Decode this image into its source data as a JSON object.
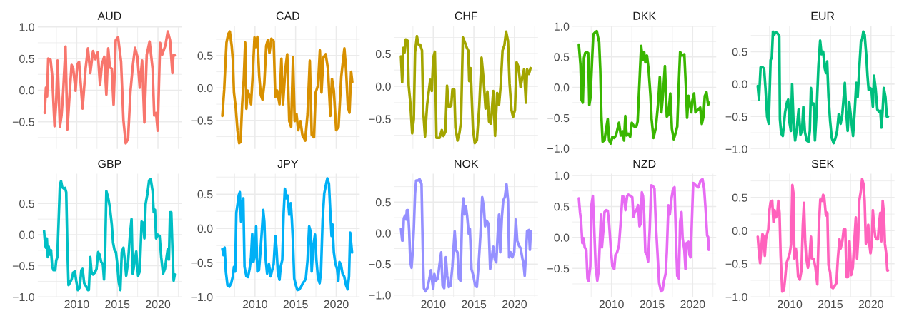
{
  "chart_data": [
    {
      "type": "line",
      "title": "AUD",
      "color": "#f8766d",
      "grid": true,
      "tick_labels": "y",
      "xlim": [
        2005.2,
        2022.9
      ],
      "xticks": [
        {
          "value": 2007.5,
          "label": null
        },
        2010,
        {
          "value": 2012.5,
          "label": null
        },
        2015,
        {
          "value": 2017.5,
          "label": null
        },
        2020,
        {
          "value": 2022.5,
          "label": null
        }
      ],
      "ylim": [
        -0.93,
        1.02
      ],
      "yticks": [
        {
          "value": -0.75,
          "label": null
        },
        {
          "value": -0.5,
          "label": "−0.5"
        },
        {
          "value": -0.25,
          "label": null
        },
        {
          "value": 0,
          "label": "0.0"
        },
        {
          "value": 0.25,
          "label": null
        },
        {
          "value": 0.5,
          "label": "0.5"
        },
        {
          "value": 0.75,
          "label": null
        },
        {
          "value": 1.0,
          "label": "1.0"
        }
      ],
      "x": [
        2006.06,
        2006.21,
        2006.35,
        2006.49,
        2006.78,
        2006.98,
        2007.27,
        2007.47,
        2007.64,
        2007.93,
        2008.13,
        2008.33,
        2008.62,
        2008.85,
        2009.14,
        2009.37,
        2009.57,
        2009.86,
        2010.06,
        2010.29,
        2010.72,
        2011.09,
        2011.38,
        2011.67,
        2012.01,
        2012.3,
        2012.59,
        2012.87,
        2013.1,
        2013.39,
        2013.65,
        2013.88,
        2014.08,
        2014.31,
        2014.54,
        2014.8,
        2015.09,
        2015.46,
        2015.75,
        2016.03,
        2016.32,
        2016.61,
        2016.9,
        2017.18,
        2017.47,
        2017.76,
        2018.05,
        2018.33,
        2018.62,
        2018.97,
        2019.34,
        2019.54,
        2019.77,
        2019.97,
        2020.26,
        2020.52,
        2020.92,
        2021.21,
        2021.49,
        2021.78,
        2021.9,
        2022.07
      ],
      "values": [
        -0.36,
        0.04,
        -0.1,
        0.5,
        0.48,
        0.23,
        -0.57,
        -0.2,
        0.47,
        -0.58,
        -0.4,
        -0.03,
        0.69,
        -0.62,
        -0.03,
        0.4,
        0.34,
        -0.01,
        0.4,
        0.45,
        -0.29,
        0.34,
        0.66,
        0.27,
        0.62,
        0.49,
        0.6,
        0.08,
        0.41,
        0.53,
        -0.07,
        0.66,
        0.36,
        0.34,
        -0.23,
        0.79,
        0.84,
        0.45,
        -0.47,
        -0.84,
        -0.77,
        -0.03,
        0.38,
        0.67,
        0.53,
        0.04,
        0.47,
        -0.51,
        0.56,
        0.77,
        0.34,
        -0.4,
        -0.36,
        -0.64,
        0.75,
        0.56,
        0.71,
        0.93,
        0.79,
        0.27,
        0.55,
        0.55
      ]
    },
    {
      "type": "line",
      "title": "CAD",
      "color": "#d89000",
      "grid": true,
      "tick_labels": "y",
      "xlim": [
        2005.2,
        2022.9
      ],
      "xticks": [
        {
          "value": 2007.5,
          "label": null
        },
        2010,
        {
          "value": 2012.5,
          "label": null
        },
        2015,
        {
          "value": 2017.5,
          "label": null
        },
        2020,
        {
          "value": 2022.5,
          "label": null
        }
      ],
      "ylim": [
        -0.94,
        0.96
      ],
      "yticks": [
        {
          "value": -0.75,
          "label": null
        },
        {
          "value": -0.5,
          "label": "−0.5"
        },
        {
          "value": -0.25,
          "label": null
        },
        {
          "value": 0,
          "label": "0.0"
        },
        {
          "value": 0.25,
          "label": null
        },
        {
          "value": 0.5,
          "label": "0.5"
        },
        {
          "value": 0.75,
          "label": null
        }
      ],
      "x": [
        2005.98,
        2006.21,
        2006.35,
        2006.49,
        2006.7,
        2006.9,
        2007.13,
        2007.27,
        2007.41,
        2007.64,
        2007.84,
        2008.05,
        2008.22,
        2008.42,
        2008.62,
        2008.79,
        2008.94,
        2009.08,
        2009.28,
        2009.51,
        2009.71,
        2009.94,
        2010.09,
        2010.29,
        2010.52,
        2010.72,
        2010.92,
        2011.15,
        2011.38,
        2011.58,
        2011.78,
        2012.01,
        2012.3,
        2012.5,
        2012.73,
        2013.02,
        2013.25,
        2013.45,
        2013.74,
        2013.97,
        2014.22,
        2014.45,
        2014.68,
        2014.89,
        2015.11,
        2015.32,
        2015.6,
        2015.83,
        2016.18,
        2016.47,
        2016.75,
        2016.98,
        2017.27,
        2017.47,
        2017.76,
        2017.99,
        2018.19,
        2018.42,
        2018.71,
        2018.99,
        2019.28,
        2019.48,
        2019.71,
        2020.0,
        2020.29,
        2020.63,
        2021.01,
        2021.21,
        2021.44,
        2021.64,
        2021.84,
        2021.98
      ],
      "values": [
        -0.43,
        -0.02,
        0.36,
        0.7,
        0.83,
        0.87,
        0.65,
        0.43,
        -0.07,
        -0.32,
        -0.65,
        -0.85,
        -0.83,
        -0.25,
        0.14,
        0.7,
        -0.32,
        -0.04,
        -0.11,
        -0.25,
        0.18,
        0.78,
        0.63,
        0.79,
        0.18,
        -0.11,
        -0.18,
        0.07,
        0.65,
        0.74,
        0.54,
        0.76,
        0.72,
        -0.14,
        -0.04,
        -0.25,
        0.45,
        -0.25,
        0.29,
        0.52,
        -0.51,
        -0.6,
        0.47,
        -0.51,
        -0.4,
        -0.65,
        -0.51,
        -0.72,
        -0.81,
        -0.4,
        0.42,
        -0.72,
        -0.76,
        -0.07,
        0.04,
        0.58,
        -0.07,
        0.47,
        0.52,
        0.29,
        -0.43,
        0.14,
        -0.04,
        -0.65,
        -0.6,
        0.18,
        0.61,
        0.29,
        -0.29,
        -0.38,
        0.25,
        0.09
      ]
    },
    {
      "type": "line",
      "title": "CHF",
      "color": "#a3a500",
      "grid": true,
      "tick_labels": "y",
      "xlim": [
        2005.2,
        2022.9
      ],
      "xticks": [
        {
          "value": 2007.5,
          "label": null
        },
        2010,
        {
          "value": 2012.5,
          "label": null
        },
        2015,
        {
          "value": 2017.5,
          "label": null
        },
        2020,
        {
          "value": 2022.5,
          "label": null
        }
      ],
      "ylim": [
        -0.96,
        0.93
      ],
      "yticks": [
        {
          "value": -0.75,
          "label": null
        },
        {
          "value": -0.5,
          "label": "−0.5"
        },
        {
          "value": -0.25,
          "label": null
        },
        {
          "value": 0,
          "label": "0.0"
        },
        {
          "value": 0.25,
          "label": null
        },
        {
          "value": 0.5,
          "label": "0.5"
        },
        {
          "value": 0.75,
          "label": null
        }
      ],
      "x": [
        2006.03,
        2006.18,
        2006.32,
        2006.47,
        2006.61,
        2006.84,
        2006.98,
        2007.18,
        2007.41,
        2007.61,
        2007.76,
        2007.99,
        2008.19,
        2008.39,
        2008.62,
        2008.76,
        2008.99,
        2009.25,
        2009.43,
        2009.63,
        2009.83,
        2010.0,
        2010.2,
        2010.4,
        2010.78,
        2011.06,
        2011.26,
        2011.49,
        2011.7,
        2011.93,
        2012.21,
        2012.36,
        2012.59,
        2012.73,
        2012.99,
        2013.22,
        2013.42,
        2013.65,
        2013.94,
        2014.14,
        2014.31,
        2014.43,
        2014.6,
        2014.89,
        2015.11,
        2015.37,
        2015.66,
        2015.95,
        2016.18,
        2016.44,
        2016.67,
        2016.87,
        2017.1,
        2017.39,
        2017.61,
        2017.87,
        2018.1,
        2018.3,
        2018.53,
        2018.76,
        2018.97,
        2019.2,
        2019.4,
        2019.63,
        2019.83,
        2020.06,
        2020.26,
        2020.49,
        2020.75,
        2020.98,
        2021.18,
        2021.41,
        2021.55,
        2021.78,
        2021.98
      ],
      "values": [
        0.46,
        0.06,
        0.59,
        0.52,
        0.72,
        0.7,
        0.01,
        -0.25,
        -0.72,
        -0.5,
        0.52,
        0.77,
        0.64,
        0.64,
        0.55,
        -0.36,
        -0.77,
        -0.28,
        -0.1,
        0.1,
        -0.07,
        0.44,
        0.53,
        -0.79,
        -0.79,
        -0.67,
        -0.76,
        -0.7,
        0.01,
        -0.32,
        -0.3,
        -0.05,
        -0.05,
        -0.63,
        -0.83,
        -0.72,
        -0.54,
        0.75,
        0.66,
        0.59,
        0.55,
        0.08,
        0.28,
        -0.65,
        -0.87,
        -0.83,
        -0.32,
        0.44,
        0.13,
        -0.34,
        -0.08,
        -0.54,
        -0.57,
        -0.07,
        -0.76,
        -0.1,
        -0.28,
        0.01,
        0.55,
        0.63,
        0.84,
        0.7,
        0.04,
        -0.36,
        -0.47,
        -0.36,
        0.37,
        0.3,
        -0.01,
        0.15,
        0.26,
        -0.25,
        0.26,
        0.19,
        0.28
      ]
    },
    {
      "type": "line",
      "title": "DKK",
      "color": "#39b600",
      "grid": true,
      "tick_labels": "y",
      "xlim": [
        2005.2,
        2022.9
      ],
      "xticks": [
        {
          "value": 2007.5,
          "label": null
        },
        2010,
        {
          "value": 2012.5,
          "label": null
        },
        2015,
        {
          "value": 2017.5,
          "label": null
        },
        2020,
        {
          "value": 2022.5,
          "label": null
        }
      ],
      "ylim": [
        -1.01,
        1.01
      ],
      "yticks": [
        {
          "value": -1.0,
          "label": "−1.0"
        },
        {
          "value": -0.75,
          "label": null
        },
        {
          "value": -0.5,
          "label": "−0.5"
        },
        {
          "value": -0.25,
          "label": null
        },
        {
          "value": 0,
          "label": "0.0"
        },
        {
          "value": 0.25,
          "label": null
        },
        {
          "value": 0.5,
          "label": "0.5"
        },
        {
          "value": 0.75,
          "label": null
        },
        {
          "value": 1.0,
          "label": "1.0"
        }
      ],
      "x": [
        2005.98,
        2006.18,
        2006.32,
        2006.47,
        2006.61,
        2006.75,
        2006.95,
        2007.13,
        2007.27,
        2007.41,
        2007.61,
        2007.76,
        2008.05,
        2008.19,
        2008.33,
        2008.48,
        2008.62,
        2008.76,
        2008.91,
        2009.14,
        2009.34,
        2009.54,
        2009.71,
        2009.91,
        2010.11,
        2010.34,
        2010.57,
        2010.78,
        2010.92,
        2011.15,
        2011.35,
        2011.55,
        2011.7,
        2011.87,
        2012.07,
        2012.3,
        2012.5,
        2012.79,
        2013.07,
        2013.22,
        2013.45,
        2013.65,
        2013.85,
        2014.02,
        2014.17,
        2014.37,
        2014.57,
        2014.8,
        2014.94,
        2015.17,
        2015.46,
        2015.75,
        2015.95,
        2016.15,
        2016.38,
        2016.58,
        2016.81,
        2017.01,
        2017.24,
        2017.44,
        2017.67,
        2017.87,
        2018.1,
        2018.25,
        2018.45,
        2018.68,
        2018.97,
        2019.17,
        2019.31,
        2019.48,
        2019.68,
        2019.83,
        2019.97,
        2020.17,
        2020.34,
        2020.63,
        2020.92,
        2021.12,
        2021.32,
        2021.49,
        2021.7,
        2021.9,
        2021.98
      ],
      "values": [
        0.7,
        0.37,
        -0.21,
        -0.25,
        0.48,
        0.56,
        0.58,
        0.56,
        -0.29,
        -0.17,
        0.45,
        0.87,
        0.91,
        0.92,
        0.83,
        0.74,
        0.29,
        -0.48,
        -0.89,
        -0.87,
        -0.68,
        -0.52,
        -0.87,
        -0.92,
        -0.81,
        -0.83,
        -0.78,
        -0.66,
        -0.58,
        -0.79,
        -0.72,
        -0.87,
        -0.47,
        -0.79,
        -0.76,
        -0.81,
        -0.58,
        -0.64,
        -0.64,
        -0.56,
        0.1,
        0.68,
        0.45,
        0.58,
        0.41,
        0.52,
        0.29,
        -0.14,
        -0.52,
        -0.83,
        -0.66,
        -0.25,
        0.17,
        -0.41,
        -0.06,
        0.35,
        -0.48,
        -0.45,
        -0.1,
        -0.68,
        -0.85,
        -0.76,
        -0.64,
        -0.06,
        0.58,
        0.52,
        0.54,
        -0.02,
        -0.5,
        -0.14,
        -0.29,
        -0.41,
        -0.21,
        -0.1,
        -0.41,
        -0.37,
        -0.33,
        -0.6,
        -0.48,
        -0.14,
        -0.08,
        -0.29,
        -0.25
      ]
    },
    {
      "type": "line",
      "title": "EUR",
      "color": "#00bf7d",
      "grid": true,
      "tick_labels": "y",
      "xlim": [
        2005.2,
        2022.9
      ],
      "xticks": [
        {
          "value": 2007.5,
          "label": null
        },
        2010,
        {
          "value": 2012.5,
          "label": null
        },
        2015,
        {
          "value": 2017.5,
          "label": null
        },
        2020,
        {
          "value": 2022.5,
          "label": null
        }
      ],
      "ylim": [
        -1.0,
        0.9
      ],
      "yticks": [
        {
          "value": -1.0,
          "label": "−1.0"
        },
        {
          "value": -0.75,
          "label": null
        },
        {
          "value": -0.5,
          "label": "−0.5"
        },
        {
          "value": -0.25,
          "label": null
        },
        {
          "value": 0,
          "label": "0.0"
        },
        {
          "value": 0.25,
          "label": null
        },
        {
          "value": 0.5,
          "label": "0.5"
        },
        {
          "value": 0.75,
          "label": null
        }
      ],
      "x": [
        2006.06,
        2006.21,
        2006.41,
        2006.64,
        2006.84,
        2007.01,
        2007.21,
        2007.41,
        2007.64,
        2007.79,
        2007.93,
        2008.07,
        2008.28,
        2008.51,
        2008.71,
        2008.79,
        2008.94,
        2009.14,
        2009.43,
        2009.66,
        2009.8,
        2009.94,
        2010.14,
        2010.29,
        2010.46,
        2010.66,
        2010.86,
        2011.09,
        2011.32,
        2011.52,
        2011.67,
        2011.87,
        2012.1,
        2012.3,
        2012.47,
        2012.61,
        2012.76,
        2012.93,
        2013.1,
        2013.3,
        2013.53,
        2013.74,
        2013.91,
        2014.11,
        2014.31,
        2014.45,
        2014.6,
        2014.77,
        2014.97,
        2015.17,
        2015.4,
        2015.63,
        2015.83,
        2016.03,
        2016.26,
        2016.47,
        2016.64,
        2016.78,
        2016.93,
        2017.13,
        2017.33,
        2017.56,
        2017.79,
        2017.99,
        2018.19,
        2018.36,
        2018.56,
        2018.76,
        2018.91,
        2019.05,
        2019.22,
        2019.43,
        2019.57,
        2019.71,
        2019.91,
        2020.06,
        2020.23,
        2020.37,
        2020.57,
        2020.78,
        2021.01,
        2021.15,
        2021.29,
        2021.44,
        2021.58,
        2021.78,
        2021.95,
        2022.1
      ],
      "values": [
        -0.03,
        -0.24,
        0.26,
        0.26,
        0.24,
        -0.06,
        -0.5,
        -0.61,
        0.37,
        0.41,
        0.81,
        0.76,
        0.8,
        0.78,
        0.74,
        -0.54,
        -0.76,
        -0.8,
        -0.43,
        -0.28,
        -0.24,
        -0.57,
        -0.72,
        0.0,
        -0.57,
        -0.87,
        -0.7,
        -0.39,
        -0.78,
        -0.72,
        -0.35,
        -0.74,
        -0.87,
        -0.89,
        -0.72,
        -0.06,
        -0.31,
        -0.3,
        -0.87,
        -0.43,
        0.28,
        0.67,
        0.46,
        0.5,
        0.24,
        0.17,
        0.35,
        -0.2,
        -0.57,
        -0.83,
        -0.91,
        -0.83,
        -0.72,
        -0.46,
        -0.61,
        -0.46,
        -0.2,
        0.02,
        -0.39,
        -0.72,
        -0.28,
        -0.54,
        -0.8,
        -0.43,
        0.02,
        -0.2,
        0.24,
        0.65,
        0.69,
        0.81,
        0.76,
        0.43,
        0.13,
        -0.09,
        -0.06,
        -0.09,
        -0.35,
        0.13,
        -0.07,
        -0.39,
        -0.43,
        -0.41,
        -0.67,
        -0.39,
        -0.06,
        -0.2,
        -0.5,
        -0.5
      ]
    },
    {
      "type": "line",
      "title": "GBP",
      "color": "#00bfc4",
      "grid": true,
      "xlim": [
        2005.2,
        2022.9
      ],
      "xticks": [
        {
          "value": 2007.5,
          "label": null
        },
        2010,
        {
          "value": 2012.5,
          "label": null
        },
        2015,
        {
          "value": 2017.5,
          "label": null
        },
        2020,
        {
          "value": 2022.5,
          "label": null
        }
      ],
      "ylim": [
        -1.0,
        0.98
      ],
      "yticks": [
        {
          "value": -1.0,
          "label": "−1.0"
        },
        {
          "value": -0.75,
          "label": null
        },
        {
          "value": -0.5,
          "label": "−0.5"
        },
        {
          "value": -0.25,
          "label": null
        },
        {
          "value": 0,
          "label": "0.0"
        },
        {
          "value": 0.25,
          "label": null
        },
        {
          "value": 0.5,
          "label": "0.5"
        },
        {
          "value": 0.75,
          "label": null
        }
      ],
      "x": [
        2005.98,
        2006.12,
        2006.21,
        2006.32,
        2006.44,
        2006.55,
        2006.7,
        2006.84,
        2006.98,
        2007.13,
        2007.36,
        2007.47,
        2007.61,
        2007.76,
        2007.93,
        2008.07,
        2008.22,
        2008.42,
        2008.56,
        2008.71,
        2008.85,
        2008.99,
        2009.14,
        2009.37,
        2009.57,
        2009.77,
        2009.94,
        2010.14,
        2010.37,
        2010.57,
        2010.72,
        2010.92,
        2011.15,
        2011.38,
        2011.49,
        2011.67,
        2011.81,
        2012.01,
        2012.24,
        2012.44,
        2012.64,
        2012.82,
        2013.02,
        2013.22,
        2013.36,
        2013.51,
        2013.65,
        2013.88,
        2014.08,
        2014.31,
        2014.48,
        2014.66,
        2014.83,
        2014.97,
        2015.17,
        2015.37,
        2015.55,
        2015.75,
        2015.95,
        2016.09,
        2016.32,
        2016.55,
        2016.75,
        2016.9,
        2017.13,
        2017.33,
        2017.56,
        2017.76,
        2017.99,
        2018.19,
        2018.33,
        2018.48,
        2018.71,
        2018.91,
        2019.11,
        2019.34,
        2019.48,
        2019.63,
        2019.77,
        2019.97,
        2020.2,
        2020.4,
        2020.63,
        2020.86,
        2021.06,
        2021.21,
        2021.35,
        2021.49,
        2021.64,
        2021.78,
        2021.93,
        2022.07
      ],
      "values": [
        0.06,
        -0.17,
        -0.21,
        -0.06,
        -0.36,
        -0.19,
        -0.32,
        -0.25,
        -0.51,
        -0.57,
        -0.57,
        -0.42,
        -0.36,
        0.17,
        0.8,
        0.86,
        0.76,
        0.74,
        0.75,
        0.68,
        -0.21,
        -0.81,
        -0.78,
        -0.72,
        -0.61,
        -0.59,
        -0.74,
        -0.89,
        -0.85,
        -0.57,
        -0.55,
        -0.78,
        -0.83,
        -0.89,
        -0.89,
        -0.36,
        -0.59,
        -0.64,
        -0.61,
        -0.55,
        -0.28,
        -0.32,
        -0.44,
        -0.47,
        -0.72,
        -0.21,
        0.7,
        0.59,
        0.44,
        0.17,
        -0.13,
        -0.25,
        -0.28,
        -0.44,
        -0.76,
        -0.89,
        -0.28,
        -0.21,
        -0.44,
        -0.66,
        -0.44,
        -0.02,
        0.25,
        -0.63,
        -0.44,
        -0.27,
        -0.66,
        -0.59,
        0.21,
        0.19,
        -0.06,
        0.49,
        0.66,
        0.87,
        0.89,
        0.7,
        0.36,
        0.4,
        -0.06,
        0,
        -0.02,
        -0.36,
        -0.63,
        -0.55,
        -0.36,
        -0.23,
        -0.4,
        0.36,
        0.36,
        -0.21,
        -0.74,
        -0.64
      ]
    },
    {
      "type": "line",
      "title": "JPY",
      "color": "#00b0f6",
      "grid": true,
      "xlim": [
        2005.2,
        2022.9
      ],
      "xticks": [
        {
          "value": 2007.5,
          "label": null
        },
        2010,
        {
          "value": 2012.5,
          "label": null
        },
        2015,
        {
          "value": 2017.5,
          "label": null
        },
        2020,
        {
          "value": 2022.5,
          "label": null
        }
      ],
      "ylim": [
        -1.0,
        0.8
      ],
      "yticks": [
        {
          "value": -1.0,
          "label": "−1.0"
        },
        {
          "value": -0.75,
          "label": null
        },
        {
          "value": -0.5,
          "label": "−0.5"
        },
        {
          "value": -0.25,
          "label": null
        },
        {
          "value": 0,
          "label": "0.0"
        },
        {
          "value": 0.25,
          "label": null
        },
        {
          "value": 0.5,
          "label": "0.5"
        },
        {
          "value": 0.75,
          "label": null
        }
      ],
      "x": [
        2005.98,
        2006.12,
        2006.26,
        2006.41,
        2006.61,
        2006.84,
        2007.07,
        2007.27,
        2007.41,
        2007.56,
        2007.7,
        2007.84,
        2007.99,
        2008.13,
        2008.28,
        2008.42,
        2008.56,
        2008.71,
        2008.94,
        2009.14,
        2009.34,
        2009.51,
        2009.66,
        2009.8,
        2010.0,
        2010.14,
        2010.29,
        2010.49,
        2010.66,
        2010.86,
        2011.01,
        2011.15,
        2011.29,
        2011.49,
        2011.72,
        2011.93,
        2012.07,
        2012.3,
        2012.5,
        2012.64,
        2012.82,
        2013.02,
        2013.16,
        2013.36,
        2013.53,
        2013.68,
        2013.88,
        2014.02,
        2014.22,
        2014.4,
        2014.54,
        2014.68,
        2014.83,
        2015.03,
        2015.23,
        2015.46,
        2015.69,
        2015.89,
        2016.09,
        2016.26,
        2016.47,
        2016.67,
        2016.84,
        2016.98,
        2017.18,
        2017.39,
        2017.56,
        2017.76,
        2017.96,
        2018.13,
        2018.33,
        2018.53,
        2018.76,
        2018.91,
        2019.11,
        2019.28,
        2019.43,
        2019.54,
        2019.71,
        2019.91,
        2020.11,
        2020.26,
        2020.4,
        2020.57,
        2020.78,
        2020.98,
        2021.21,
        2021.41,
        2021.58,
        2021.72,
        2021.95
      ],
      "values": [
        -0.3,
        -0.39,
        -0.28,
        -0.63,
        -0.83,
        -0.85,
        -0.8,
        -0.7,
        -0.56,
        -0.63,
        0.23,
        0.34,
        0.48,
        0.53,
        0.1,
        0.37,
        0.44,
        -0.56,
        -0.7,
        -0.71,
        -0.59,
        -0.42,
        -0.08,
        -0.49,
        -0.39,
        0.03,
        -0.63,
        -0.61,
        -0.35,
        -0.01,
        0.27,
        0.1,
        -0.42,
        -0.66,
        -0.52,
        -0.7,
        -0.63,
        -0.52,
        -0.11,
        -0.28,
        -0.66,
        -0.75,
        -0.56,
        -0.46,
        0.23,
        0.58,
        0.44,
        0.48,
        0.2,
        0.37,
        0.13,
        -0.21,
        -0.73,
        -0.83,
        -0.9,
        -0.89,
        -0.85,
        -0.8,
        -0.77,
        -0.73,
        -0.46,
        0.03,
        -0.04,
        -0.63,
        -0.25,
        -0.09,
        -0.46,
        -0.73,
        -0.8,
        -0.63,
        0.13,
        0.51,
        0.65,
        0.73,
        0.65,
        0.23,
        -0.11,
        0.06,
        -0.35,
        -0.52,
        -0.59,
        -0.77,
        -0.49,
        -0.52,
        -0.66,
        -0.7,
        -0.83,
        -0.89,
        -0.7,
        -0.06,
        -0.35
      ]
    },
    {
      "type": "line",
      "title": "NOK",
      "color": "#9590ff",
      "grid": true,
      "xlim": [
        2005.2,
        2022.9
      ],
      "xticks": [
        {
          "value": 2007.5,
          "label": null
        },
        2010,
        {
          "value": 2012.5,
          "label": null
        },
        2015,
        {
          "value": 2017.5,
          "label": null
        },
        2020,
        {
          "value": 2022.5,
          "label": null
        }
      ],
      "ylim": [
        -1.03,
        0.96
      ],
      "yticks": [
        {
          "value": -1.0,
          "label": "−1.0"
        },
        {
          "value": -0.75,
          "label": null
        },
        {
          "value": -0.5,
          "label": "−0.5"
        },
        {
          "value": -0.25,
          "label": null
        },
        {
          "value": 0,
          "label": "0.0"
        },
        {
          "value": 0.25,
          "label": null
        },
        {
          "value": 0.5,
          "label": "0.5"
        },
        {
          "value": 0.75,
          "label": null
        }
      ],
      "x": [
        2006.03,
        2006.18,
        2006.26,
        2006.38,
        2006.52,
        2006.67,
        2006.75,
        2006.9,
        2007.04,
        2007.18,
        2007.33,
        2007.47,
        2007.61,
        2007.76,
        2007.9,
        2008.13,
        2008.33,
        2008.56,
        2008.71,
        2008.85,
        2009.05,
        2009.28,
        2009.54,
        2009.71,
        2009.86,
        2010.0,
        2010.14,
        2010.34,
        2010.57,
        2010.78,
        2010.98,
        2011.15,
        2011.35,
        2011.55,
        2011.72,
        2011.93,
        2012.13,
        2012.36,
        2012.5,
        2012.64,
        2012.79,
        2012.99,
        2013.16,
        2013.36,
        2013.56,
        2013.71,
        2013.85,
        2014.02,
        2014.17,
        2014.37,
        2014.51,
        2014.71,
        2014.94,
        2015.17,
        2015.37,
        2015.57,
        2015.8,
        2016.03,
        2016.24,
        2016.38,
        2016.58,
        2016.81,
        2017.01,
        2017.18,
        2017.39,
        2017.59,
        2017.76,
        2017.96,
        2018.1,
        2018.25,
        2018.45,
        2018.62,
        2018.82,
        2019.02,
        2019.2,
        2019.34,
        2019.54,
        2019.74,
        2019.97,
        2020.17,
        2020.34,
        2020.55,
        2020.75,
        2020.98,
        2021.12,
        2021.26,
        2021.41,
        2021.55,
        2021.78,
        2021.9,
        2022.01
      ],
      "values": [
        0.07,
        -0.12,
        -0.12,
        0.24,
        0.28,
        0.22,
        0.37,
        0.37,
        0.03,
        -0.47,
        -0.56,
        -0.31,
        0.07,
        0.64,
        0.85,
        0.85,
        0.87,
        0.79,
        -0.24,
        -0.89,
        -0.94,
        -0.89,
        -0.73,
        -0.6,
        -0.77,
        -0.9,
        -0.66,
        -0.77,
        -0.73,
        -0.5,
        -0.31,
        -0.85,
        -0.89,
        -0.39,
        -0.69,
        -0.87,
        -0.85,
        -0.54,
        -0.24,
        0.03,
        -0.27,
        -0.31,
        -0.73,
        -0.77,
        0.3,
        0.56,
        0.3,
        0.43,
        0.28,
        -0.01,
        0.07,
        -0.58,
        -0.69,
        -0.85,
        -0.87,
        -0.54,
        -0.05,
        0.58,
        0.41,
        0.11,
        0.2,
        0.15,
        -0.58,
        -0.43,
        -0.22,
        -0.43,
        -0.47,
        0.03,
        0.3,
        -0.31,
        0.26,
        0.53,
        0.58,
        0.79,
        0.53,
        -0.39,
        -0.31,
        -0.39,
        -0.31,
        0.22,
        -0.12,
        -0.2,
        -0.24,
        -0.41,
        -0.5,
        -0.69,
        -0.35,
        0.03,
        0.05,
        -0.27,
        0.03
      ]
    },
    {
      "type": "line",
      "title": "NZD",
      "color": "#e76bf3",
      "grid": true,
      "xlim": [
        2005.2,
        2022.9
      ],
      "xticks": [
        {
          "value": 2007.5,
          "label": null
        },
        2010,
        {
          "value": 2012.5,
          "label": null
        },
        2015,
        {
          "value": 2017.5,
          "label": null
        },
        2020,
        {
          "value": 2022.5,
          "label": null
        }
      ],
      "ylim": [
        -0.96,
        1.03
      ],
      "yticks": [
        {
          "value": -0.75,
          "label": null
        },
        {
          "value": -0.5,
          "label": "−0.5"
        },
        {
          "value": -0.25,
          "label": null
        },
        {
          "value": 0,
          "label": "0.0"
        },
        {
          "value": 0.25,
          "label": null
        },
        {
          "value": 0.5,
          "label": "0.5"
        },
        {
          "value": 0.75,
          "label": null
        },
        {
          "value": 1.0,
          "label": "1.0"
        }
      ],
      "x": [
        2005.98,
        2006.12,
        2006.26,
        2006.41,
        2006.55,
        2006.7,
        2006.9,
        2007.04,
        2007.18,
        2007.39,
        2007.53,
        2007.7,
        2007.84,
        2008.05,
        2008.25,
        2008.42,
        2008.56,
        2008.71,
        2008.82,
        2008.99,
        2009.14,
        2009.34,
        2009.54,
        2009.71,
        2009.91,
        2010.11,
        2010.34,
        2010.49,
        2010.69,
        2010.92,
        2011.12,
        2011.35,
        2011.55,
        2011.72,
        2011.93,
        2012.07,
        2012.36,
        2012.56,
        2012.7,
        2012.87,
        2013.07,
        2013.28,
        2013.45,
        2013.59,
        2013.74,
        2013.88,
        2014.02,
        2014.17,
        2014.37,
        2014.51,
        2014.71,
        2014.89,
        2015.09,
        2015.29,
        2015.46,
        2015.66,
        2015.86,
        2016.09,
        2016.29,
        2016.47,
        2016.67,
        2016.81,
        2017.01,
        2017.18,
        2017.39,
        2017.59,
        2017.76,
        2017.96,
        2018.1,
        2018.3,
        2018.45,
        2018.62,
        2018.76,
        2018.97,
        2019.11,
        2019.25,
        2019.48,
        2019.6,
        2019.74,
        2019.89,
        2020.06,
        2020.4,
        2020.69,
        2020.98,
        2021.21,
        2021.41,
        2021.61,
        2021.78,
        2021.9,
        2021.98
      ],
      "values": [
        0.63,
        0.41,
        0.25,
        -0.09,
        -0.01,
        -0.16,
        -0.2,
        -0.66,
        -0.7,
        -0.47,
        0.52,
        0.67,
        0.25,
        -0.47,
        -0.7,
        -0.54,
        -0.09,
        0.37,
        -0.16,
        0.1,
        0.41,
        0.44,
        0.43,
        0.22,
        -0.16,
        -0.47,
        -0.51,
        -0.28,
        -0.24,
        -0.13,
        0.22,
        0.67,
        0.65,
        0.44,
        0.67,
        0.69,
        0.67,
        0.65,
        0.33,
        0.41,
        0.44,
        0.52,
        0.18,
        0.22,
        0.73,
        0.67,
        0.37,
        -0.24,
        -0.28,
        -0.39,
        0.14,
        0.84,
        0.83,
        0.79,
        0.22,
        -0.24,
        -0.73,
        -0.87,
        -0.85,
        -0.7,
        -0.58,
        -0.24,
        0.52,
        0.37,
        0.63,
        0.79,
        0.81,
        -0.09,
        -0.62,
        -0.66,
        0.25,
        0.41,
        -0.01,
        -0.2,
        -0.51,
        -0.09,
        -0.07,
        -0.28,
        -0.32,
        0.22,
        0.88,
        0.84,
        0.81,
        0.92,
        0.94,
        0.79,
        0.41,
        0.03,
        0.01,
        -0.2
      ]
    },
    {
      "type": "line",
      "title": "SEK",
      "color": "#ff62bc",
      "grid": true,
      "xlim": [
        2005.2,
        2022.9
      ],
      "xticks": [
        {
          "value": 2007.5,
          "label": null
        },
        2010,
        {
          "value": 2012.5,
          "label": null
        },
        2015,
        {
          "value": 2017.5,
          "label": null
        },
        2020,
        {
          "value": 2022.5,
          "label": null
        }
      ],
      "ylim": [
        -1.0,
        0.86
      ],
      "yticks": [
        {
          "value": -1.0,
          "label": "−1.0"
        },
        {
          "value": -0.75,
          "label": null
        },
        {
          "value": -0.5,
          "label": "−0.5"
        },
        {
          "value": -0.25,
          "label": null
        },
        {
          "value": 0,
          "label": "0.0"
        },
        {
          "value": 0.25,
          "label": null
        },
        {
          "value": 0.5,
          "label": "0.5"
        },
        {
          "value": 0.75,
          "label": null
        }
      ],
      "x": [
        2006.06,
        2006.21,
        2006.35,
        2006.49,
        2006.64,
        2006.78,
        2006.93,
        2007.07,
        2007.21,
        2007.36,
        2007.5,
        2007.64,
        2007.84,
        2007.99,
        2008.13,
        2008.28,
        2008.45,
        2008.59,
        2008.74,
        2008.88,
        2009.08,
        2009.28,
        2009.45,
        2009.6,
        2009.8,
        2010.0,
        2010.17,
        2010.32,
        2010.46,
        2010.57,
        2010.75,
        2010.89,
        2011.03,
        2011.24,
        2011.44,
        2011.61,
        2011.75,
        2011.9,
        2012.04,
        2012.24,
        2012.44,
        2012.61,
        2012.76,
        2012.96,
        2013.16,
        2013.39,
        2013.59,
        2013.76,
        2013.97,
        2014.11,
        2014.25,
        2014.45,
        2014.63,
        2014.77,
        2014.97,
        2015.11,
        2015.32,
        2015.55,
        2015.75,
        2015.92,
        2016.12,
        2016.26,
        2016.47,
        2016.64,
        2016.84,
        2016.98,
        2017.18,
        2017.36,
        2017.56,
        2017.76,
        2017.93,
        2018.13,
        2018.28,
        2018.42,
        2018.56,
        2018.76,
        2018.91,
        2019.08,
        2019.22,
        2019.37,
        2019.51,
        2019.66,
        2019.8,
        2019.94,
        2020.09,
        2020.23,
        2020.37,
        2020.52,
        2020.72,
        2020.86,
        2021.01,
        2021.15,
        2021.29,
        2021.44,
        2021.58,
        2021.72,
        2021.87,
        2022.01,
        2022.1
      ],
      "values": [
        -0.09,
        -0.34,
        -0.49,
        -0.27,
        -0.05,
        -0.09,
        -0.38,
        -0.13,
        -0.05,
        0.02,
        0.31,
        0.43,
        0.45,
        0.13,
        0.31,
        0.2,
        0.23,
        0.45,
        0.27,
        -0.38,
        -0.92,
        -0.9,
        -0.7,
        -0.49,
        -0.42,
        -0.34,
        -0.2,
        0.69,
        0.56,
        -0.42,
        -0.27,
        -0.42,
        -0.7,
        -0.74,
        -0.6,
        0.09,
        0.42,
        -0.16,
        -0.42,
        -0.56,
        -0.42,
        -0.09,
        -0.42,
        -0.43,
        -0.56,
        -0.81,
        0.09,
        0.47,
        0.45,
        0.54,
        0.49,
        0.23,
        0.27,
        -0.52,
        -0.63,
        -0.85,
        -0.87,
        -0.83,
        -0.79,
        -0.42,
        -0.13,
        -0.27,
        -0.16,
        0.02,
        0.02,
        -0.7,
        -0.7,
        -0.16,
        -0.67,
        -0.56,
        -0.2,
        0.2,
        -0.42,
        -0.13,
        0.45,
        0.6,
        0.78,
        0.7,
        0.45,
        -0.2,
        -0.13,
        0.09,
        -0.2,
        -0.34,
        -0.2,
        0.31,
        0.09,
        -0.09,
        -0.13,
        -0.13,
        0.13,
        0.27,
        -0.16,
        0.45,
        0.27,
        -0.2,
        -0.34,
        -0.6,
        -0.6
      ]
    }
  ]
}
